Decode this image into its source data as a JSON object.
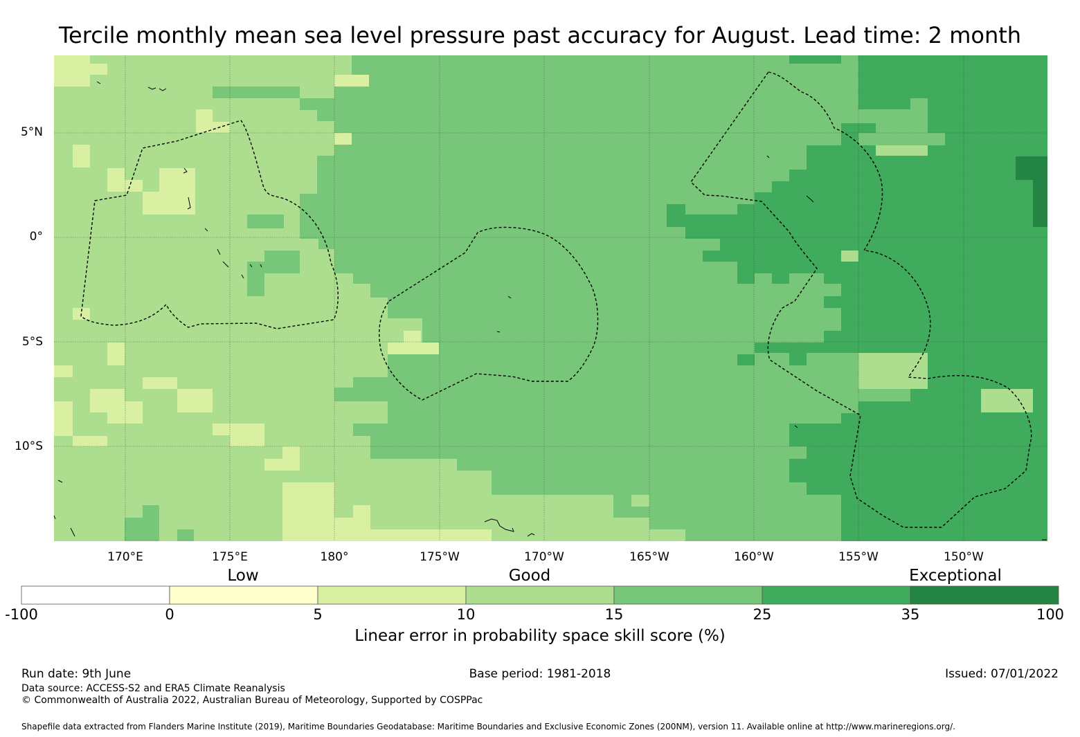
{
  "title": "Tercile monthly mean sea level pressure past accuracy for August. Lead time: 2 month",
  "lat_labels": [
    "5°N",
    "0°",
    "5°S",
    "10°S"
  ],
  "lon_labels": [
    "170°E",
    "175°E",
    "180°",
    "175°W",
    "170°W",
    "165°W",
    "160°W",
    "155°W",
    "150°W"
  ],
  "colorbar": {
    "categories": [
      "Low",
      "Good",
      "Exceptional"
    ],
    "ticks": [
      "-100",
      "0",
      "5",
      "10",
      "15",
      "25",
      "35",
      "100"
    ],
    "colors": [
      "#ffffff",
      "#ffffcc",
      "#d9f0a3",
      "#addd8e",
      "#78c679",
      "#41ab5d",
      "#238443"
    ],
    "title": "Linear error in probability space skill score (%)"
  },
  "footer": {
    "run_date": "Run date: 9th June",
    "base_period": "Base period: 1981-2018",
    "issued": "Issued: 07/01/2022",
    "data_source": "Data source: ACCESS-S2 and ERA5 Climate Reanalysis",
    "copyright": "© Commonwealth of Australia 2022, Australian Bureau of Meteorology, Supported by COSPPac",
    "shapefile": "Shapefile data extracted from Flanders Marine Institute (2019), Maritime Boundaries Geodatabase: Maritime Boundaries and Exclusive Economic Zones (200NM), version 11. Available online at http://www.marineregions.org/."
  }
}
